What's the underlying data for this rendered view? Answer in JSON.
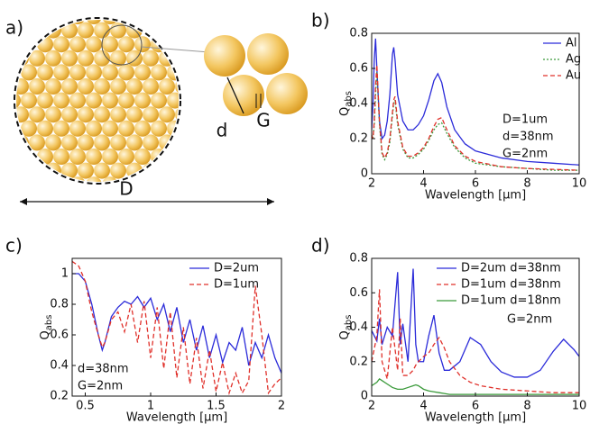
{
  "diagram": {
    "panel_label": "a)",
    "labels": [
      "D",
      "d",
      "G"
    ]
  },
  "chart_data": [
    {
      "type": "line",
      "panel_label": "b)",
      "ylabel": "Q",
      "ylabel_sub": "abs",
      "xlabel": "Wavelength [µm]",
      "xlim": [
        2,
        10
      ],
      "xticks": [
        2,
        4,
        6,
        8,
        10
      ],
      "ylim": [
        0,
        0.8
      ],
      "yticks": [
        0,
        0.2,
        0.4,
        0.6,
        0.8
      ],
      "legend": "upper right",
      "annotations": [
        "D=1um",
        "d=38nm",
        "G=2nm"
      ],
      "x": [
        2,
        2.05,
        2.1,
        2.15,
        2.2,
        2.3,
        2.4,
        2.5,
        2.6,
        2.7,
        2.8,
        2.85,
        2.9,
        3.0,
        3.2,
        3.4,
        3.6,
        3.8,
        4.0,
        4.2,
        4.4,
        4.55,
        4.7,
        4.9,
        5.2,
        5.6,
        6,
        7,
        8,
        9,
        10
      ],
      "series": [
        {
          "name": "Al",
          "color": "#2b2bd9",
          "linestyle": "solid",
          "values": [
            0.25,
            0.4,
            0.65,
            0.77,
            0.6,
            0.3,
            0.2,
            0.22,
            0.3,
            0.45,
            0.68,
            0.72,
            0.65,
            0.45,
            0.3,
            0.25,
            0.25,
            0.28,
            0.33,
            0.42,
            0.53,
            0.57,
            0.52,
            0.38,
            0.25,
            0.17,
            0.13,
            0.09,
            0.07,
            0.06,
            0.05
          ]
        },
        {
          "name": "Ag",
          "color": "#3a9a3a",
          "linestyle": "dotted",
          "values": [
            0.22,
            0.2,
            0.28,
            0.45,
            0.58,
            0.28,
            0.11,
            0.08,
            0.11,
            0.18,
            0.33,
            0.4,
            0.42,
            0.28,
            0.14,
            0.09,
            0.09,
            0.11,
            0.14,
            0.19,
            0.25,
            0.28,
            0.29,
            0.23,
            0.15,
            0.09,
            0.06,
            0.04,
            0.03,
            0.02,
            0.02
          ]
        },
        {
          "name": "Au",
          "color": "#e0302a",
          "linestyle": "dashed",
          "values": [
            0.22,
            0.2,
            0.3,
            0.5,
            0.62,
            0.3,
            0.12,
            0.09,
            0.12,
            0.2,
            0.35,
            0.42,
            0.44,
            0.3,
            0.15,
            0.1,
            0.1,
            0.12,
            0.15,
            0.2,
            0.27,
            0.31,
            0.32,
            0.25,
            0.16,
            0.1,
            0.07,
            0.04,
            0.03,
            0.025,
            0.02
          ]
        }
      ]
    },
    {
      "type": "line",
      "panel_label": "c)",
      "ylabel": "Q",
      "ylabel_sub": "abs",
      "xlabel": "Wavelength [µm]",
      "xlim": [
        0.4,
        2
      ],
      "xticks": [
        0.5,
        1,
        1.5,
        2
      ],
      "ylim": [
        0.2,
        1.1
      ],
      "yticks": [
        0.2,
        0.4,
        0.6,
        0.8,
        1
      ],
      "legend": "upper right",
      "annotations": [
        "d=38nm",
        "G=2nm"
      ],
      "x": [
        0.4,
        0.45,
        0.5,
        0.55,
        0.6,
        0.63,
        0.65,
        0.7,
        0.75,
        0.8,
        0.85,
        0.9,
        0.95,
        1.0,
        1.05,
        1.1,
        1.15,
        1.2,
        1.25,
        1.3,
        1.35,
        1.4,
        1.45,
        1.5,
        1.55,
        1.6,
        1.65,
        1.7,
        1.75,
        1.8,
        1.85,
        1.9,
        1.95,
        2.0
      ],
      "series": [
        {
          "name": "D=2um",
          "color": "#2b2bd9",
          "linestyle": "solid",
          "values": [
            1.0,
            1.0,
            0.95,
            0.8,
            0.6,
            0.5,
            0.55,
            0.72,
            0.78,
            0.82,
            0.8,
            0.85,
            0.78,
            0.84,
            0.7,
            0.8,
            0.62,
            0.78,
            0.55,
            0.7,
            0.5,
            0.66,
            0.45,
            0.6,
            0.42,
            0.55,
            0.5,
            0.65,
            0.4,
            0.55,
            0.45,
            0.6,
            0.45,
            0.35
          ]
        },
        {
          "name": "D=1um",
          "color": "#e0302a",
          "linestyle": "dashed",
          "values": [
            1.08,
            1.05,
            0.95,
            0.75,
            0.6,
            0.52,
            0.55,
            0.7,
            0.75,
            0.62,
            0.8,
            0.55,
            0.82,
            0.45,
            0.78,
            0.38,
            0.75,
            0.32,
            0.65,
            0.28,
            0.58,
            0.25,
            0.5,
            0.23,
            0.42,
            0.22,
            0.35,
            0.22,
            0.3,
            0.92,
            0.6,
            0.22,
            0.28,
            0.32
          ]
        }
      ]
    },
    {
      "type": "line",
      "panel_label": "d)",
      "ylabel": "Q",
      "ylabel_sub": "abs",
      "xlabel": "Wavelength [µm]",
      "xlim": [
        2,
        10
      ],
      "xticks": [
        2,
        4,
        6,
        8,
        10
      ],
      "ylim": [
        0,
        0.8
      ],
      "yticks": [
        0,
        0.2,
        0.4,
        0.6,
        0.8
      ],
      "legend": "upper right",
      "annotations": [
        "G=2nm"
      ],
      "x": [
        2,
        2.2,
        2.3,
        2.4,
        2.6,
        2.8,
        3.0,
        3.1,
        3.2,
        3.4,
        3.6,
        3.7,
        3.8,
        4.0,
        4.2,
        4.4,
        4.6,
        4.8,
        5.0,
        5.4,
        5.8,
        6.2,
        6.6,
        7.0,
        7.5,
        8,
        8.5,
        9,
        9.4,
        9.8,
        10
      ],
      "series": [
        {
          "name": "D=2um d=38nm",
          "color": "#2b2bd9",
          "linestyle": "solid",
          "values": [
            0.38,
            0.32,
            0.45,
            0.3,
            0.4,
            0.35,
            0.72,
            0.3,
            0.42,
            0.2,
            0.74,
            0.3,
            0.2,
            0.2,
            0.35,
            0.47,
            0.25,
            0.15,
            0.15,
            0.2,
            0.34,
            0.3,
            0.2,
            0.14,
            0.11,
            0.11,
            0.15,
            0.26,
            0.33,
            0.27,
            0.23
          ]
        },
        {
          "name": "D=1um d=38nm",
          "color": "#e0302a",
          "linestyle": "dashed",
          "values": [
            0.2,
            0.35,
            0.62,
            0.2,
            0.1,
            0.4,
            0.15,
            0.45,
            0.12,
            0.12,
            0.15,
            0.18,
            0.2,
            0.23,
            0.25,
            0.3,
            0.34,
            0.28,
            0.2,
            0.12,
            0.08,
            0.06,
            0.05,
            0.04,
            0.035,
            0.03,
            0.025,
            0.02,
            0.02,
            0.02,
            0.02
          ]
        },
        {
          "name": "D=1um d=18nm",
          "color": "#3a9a3a",
          "linestyle": "solid",
          "values": [
            0.06,
            0.08,
            0.1,
            0.09,
            0.07,
            0.05,
            0.04,
            0.04,
            0.04,
            0.05,
            0.06,
            0.065,
            0.06,
            0.04,
            0.03,
            0.025,
            0.02,
            0.015,
            0.01,
            0.01,
            0.01,
            0.01,
            0.01,
            0.01,
            0.01,
            0.01,
            0.01,
            0.01,
            0.01,
            0.01,
            0.01
          ]
        }
      ]
    }
  ]
}
